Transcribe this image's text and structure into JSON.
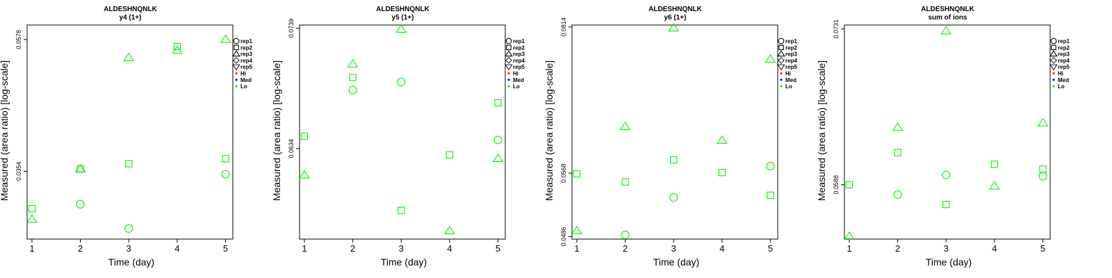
{
  "colors": {
    "Hi": "#ff0000",
    "Med": "#0000ff",
    "Lo": "#00ee00",
    "axis": "#000000"
  },
  "legend": [
    {
      "label": "rep1",
      "symbol": "circle"
    },
    {
      "label": "rep2",
      "symbol": "square"
    },
    {
      "label": "rep3",
      "symbol": "triangle-up"
    },
    {
      "label": "rep4",
      "symbol": "diamond"
    },
    {
      "label": "rep5",
      "symbol": "triangle-down"
    },
    {
      "label": "Hi",
      "symbol": "dot",
      "color_key": "Hi"
    },
    {
      "label": "Med",
      "symbol": "dot",
      "color_key": "Med"
    },
    {
      "label": "Lo",
      "symbol": "dot",
      "color_key": "Lo"
    }
  ],
  "chart_data": [
    {
      "type": "scatter",
      "title": "ALDESHNQNLK",
      "subtitle": "y4 (1+)",
      "xlabel": "Time (day)",
      "ylabel": "Measured (area ratio) [log-scale]",
      "y_log": true,
      "xlim": [
        0.9,
        5.15
      ],
      "ylim": [
        0.0275,
        0.061
      ],
      "xticks": [
        1,
        2,
        3,
        4,
        5
      ],
      "yticks": [
        0.0354,
        0.0578
      ],
      "ytick_labels": [
        "0.0354",
        "0.0578"
      ],
      "legend_placement": "right",
      "grid": false,
      "series": [
        {
          "name": "rep1",
          "symbol": "circle",
          "x": [
            2,
            3,
            5
          ],
          "y": [
            0.0313,
            0.0286,
            0.035
          ]
        },
        {
          "name": "rep2",
          "symbol": "square",
          "x": [
            1,
            2,
            3,
            4,
            5
          ],
          "y": [
            0.0308,
            0.0357,
            0.0364,
            0.0563,
            0.0371
          ]
        },
        {
          "name": "rep3",
          "symbol": "triangle-up",
          "x": [
            1,
            2,
            3,
            4,
            5
          ],
          "y": [
            0.0296,
            0.0357,
            0.054,
            0.0555,
            0.0578
          ]
        }
      ]
    },
    {
      "type": "scatter",
      "title": "ALDESHNQNLK",
      "subtitle": "y5 (1+)",
      "xlabel": "Time (day)",
      "ylabel": "Measured (area ratio) [log-scale]",
      "y_log": true,
      "xlim": [
        0.9,
        5.15
      ],
      "ylim": [
        0.0565,
        0.0742
      ],
      "xticks": [
        1,
        2,
        3,
        4,
        5
      ],
      "yticks": [
        0.0634,
        0.0739
      ],
      "ytick_labels": [
        "0.0634",
        "0.0739"
      ],
      "legend_placement": "right",
      "grid": false,
      "series": [
        {
          "name": "rep1",
          "symbol": "circle",
          "x": [
            2,
            3,
            5
          ],
          "y": [
            0.0683,
            0.069,
            0.0641
          ]
        },
        {
          "name": "rep2",
          "symbol": "square",
          "x": [
            1,
            2,
            3,
            4,
            5
          ],
          "y": [
            0.0644,
            0.0694,
            0.0586,
            0.0629,
            0.0672
          ]
        },
        {
          "name": "rep3",
          "symbol": "triangle-up",
          "x": [
            1,
            2,
            3,
            4,
            5
          ],
          "y": [
            0.0613,
            0.0706,
            0.0738,
            0.0571,
            0.0626
          ]
        }
      ]
    },
    {
      "type": "scatter",
      "title": "ALDESHNQNLK",
      "subtitle": "y6 (1+)",
      "xlabel": "Time (day)",
      "ylabel": "Measured (area ratio) [log-scale]",
      "y_log": true,
      "xlim": [
        0.9,
        5.15
      ],
      "ylim": [
        0.0483,
        0.0818
      ],
      "xticks": [
        1,
        2,
        3,
        4,
        5
      ],
      "yticks": [
        0.0486,
        0.0568,
        0.0814
      ],
      "ytick_labels": [
        "0.0486",
        "0.0568",
        "0.0814"
      ],
      "legend_placement": "right",
      "grid": false,
      "series": [
        {
          "name": "rep1",
          "symbol": "circle",
          "x": [
            2,
            3,
            5
          ],
          "y": [
            0.0488,
            0.0535,
            0.0578
          ]
        },
        {
          "name": "rep2",
          "symbol": "square",
          "x": [
            1,
            2,
            3,
            4,
            5
          ],
          "y": [
            0.0567,
            0.0556,
            0.0587,
            0.0569,
            0.0538
          ]
        },
        {
          "name": "rep3",
          "symbol": "triangle-up",
          "x": [
            1,
            2,
            3,
            4,
            5
          ],
          "y": [
            0.0493,
            0.0637,
            0.0812,
            0.0616,
            0.0752
          ]
        }
      ]
    },
    {
      "type": "scatter",
      "title": "ALDESHNQNLK",
      "subtitle": "sum of ions",
      "xlabel": "Time (day)",
      "ylabel": "Measured (area ratio) [log-scale]",
      "y_log": true,
      "xlim": [
        0.9,
        5.15
      ],
      "ylim": [
        0.0545,
        0.0735
      ],
      "xticks": [
        1,
        2,
        3,
        4,
        5
      ],
      "yticks": [
        0.0588,
        0.0731
      ],
      "ytick_labels": [
        "0.0588",
        "0.0731"
      ],
      "legend_placement": "right",
      "grid": false,
      "series": [
        {
          "name": "rep1",
          "symbol": "circle",
          "x": [
            2,
            3,
            5
          ],
          "y": [
            0.058,
            0.0596,
            0.0595
          ]
        },
        {
          "name": "rep2",
          "symbol": "square",
          "x": [
            1,
            2,
            3,
            4,
            5
          ],
          "y": [
            0.0588,
            0.0615,
            0.0572,
            0.0605,
            0.0601
          ]
        },
        {
          "name": "rep3",
          "symbol": "triangle-up",
          "x": [
            1,
            2,
            3,
            4,
            5
          ],
          "y": [
            0.0547,
            0.0637,
            0.0729,
            0.0587,
            0.0641
          ]
        }
      ]
    }
  ]
}
